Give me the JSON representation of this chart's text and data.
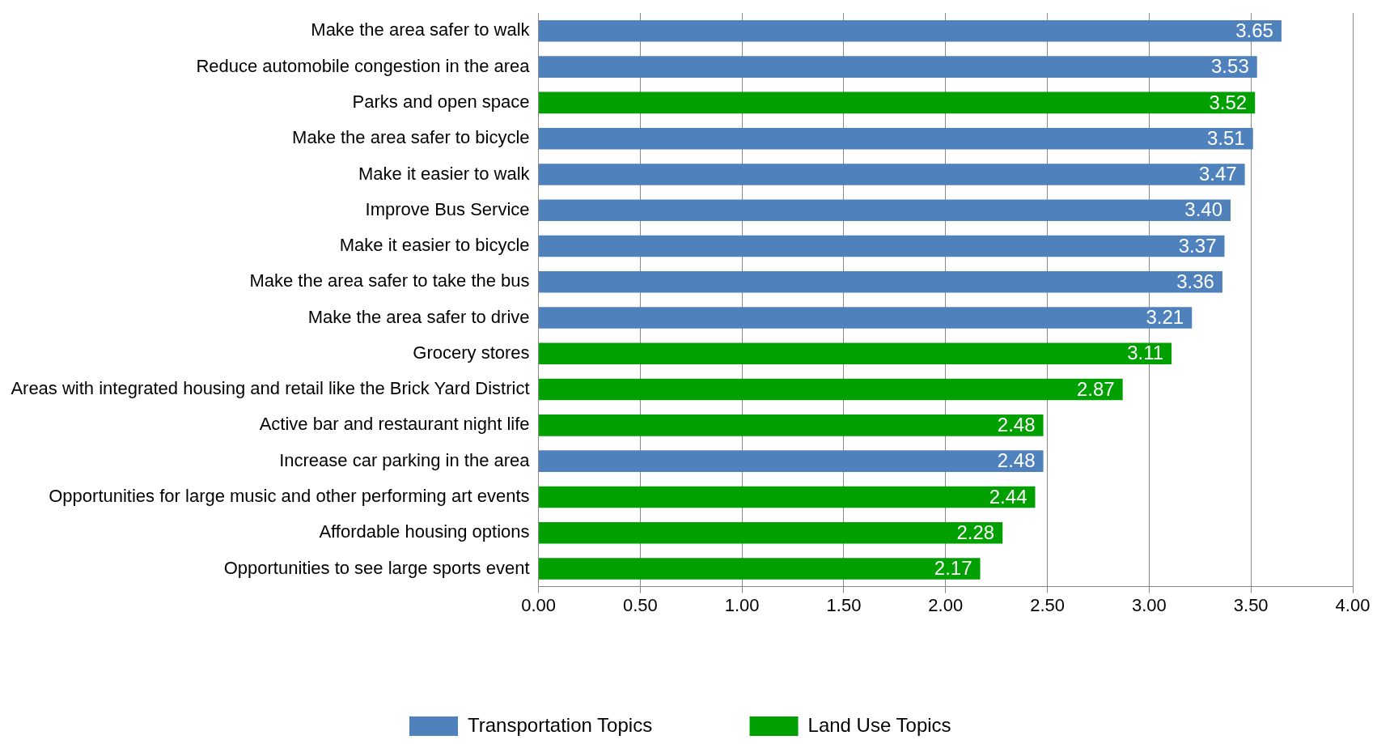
{
  "chart_data": {
    "type": "bar",
    "orientation": "horizontal",
    "stacked": true,
    "categories": [
      "Make the area safer to walk",
      "Reduce automobile congestion in the area",
      "Parks and open space",
      "Make the area safer to bicycle",
      "Make it easier to walk",
      "Improve Bus Service",
      "Make it easier to bicycle",
      "Make the area safer to take the bus",
      "Make the area safer to drive",
      "Grocery stores",
      "Areas with integrated housing and retail like the Brick Yard District",
      "Active bar and restaurant night life",
      "Increase car parking in the area",
      "Opportunities for large music and other performing art events",
      "Affordable housing options",
      "Opportunities to see large sports event"
    ],
    "series": [
      {
        "name": "Transportation Topics",
        "color": "#4f81bd",
        "values": [
          3.65,
          3.53,
          null,
          3.51,
          3.47,
          3.4,
          3.37,
          3.36,
          3.21,
          null,
          null,
          null,
          2.48,
          null,
          null,
          null
        ],
        "value_labels": [
          "3.65",
          "3.53",
          null,
          "3.51",
          "3.47",
          "3.40",
          "3.37",
          "3.36",
          "3.21",
          null,
          null,
          null,
          "2.48",
          null,
          null,
          null
        ]
      },
      {
        "name": "Land Use Topics",
        "color": "#00a000",
        "values": [
          null,
          null,
          3.52,
          null,
          null,
          null,
          null,
          null,
          null,
          3.11,
          2.87,
          2.48,
          null,
          2.44,
          2.28,
          2.17
        ],
        "value_labels": [
          null,
          null,
          "3.52",
          null,
          null,
          null,
          null,
          null,
          null,
          "3.11",
          "2.87",
          "2.48",
          null,
          "2.44",
          "2.28",
          "2.17"
        ]
      }
    ],
    "xlim": [
      0,
      4
    ],
    "xticks": [
      {
        "value": 0,
        "label": "0.00"
      },
      {
        "value": 0.5,
        "label": "0.50"
      },
      {
        "value": 1,
        "label": "1.00"
      },
      {
        "value": 1.5,
        "label": "1.50"
      },
      {
        "value": 2,
        "label": "2.00"
      },
      {
        "value": 2.5,
        "label": "2.50"
      },
      {
        "value": 3,
        "label": "3.00"
      },
      {
        "value": 3.5,
        "label": "3.50"
      },
      {
        "value": 4,
        "label": "4.00"
      }
    ],
    "grid": "x",
    "legend": "bottom"
  }
}
